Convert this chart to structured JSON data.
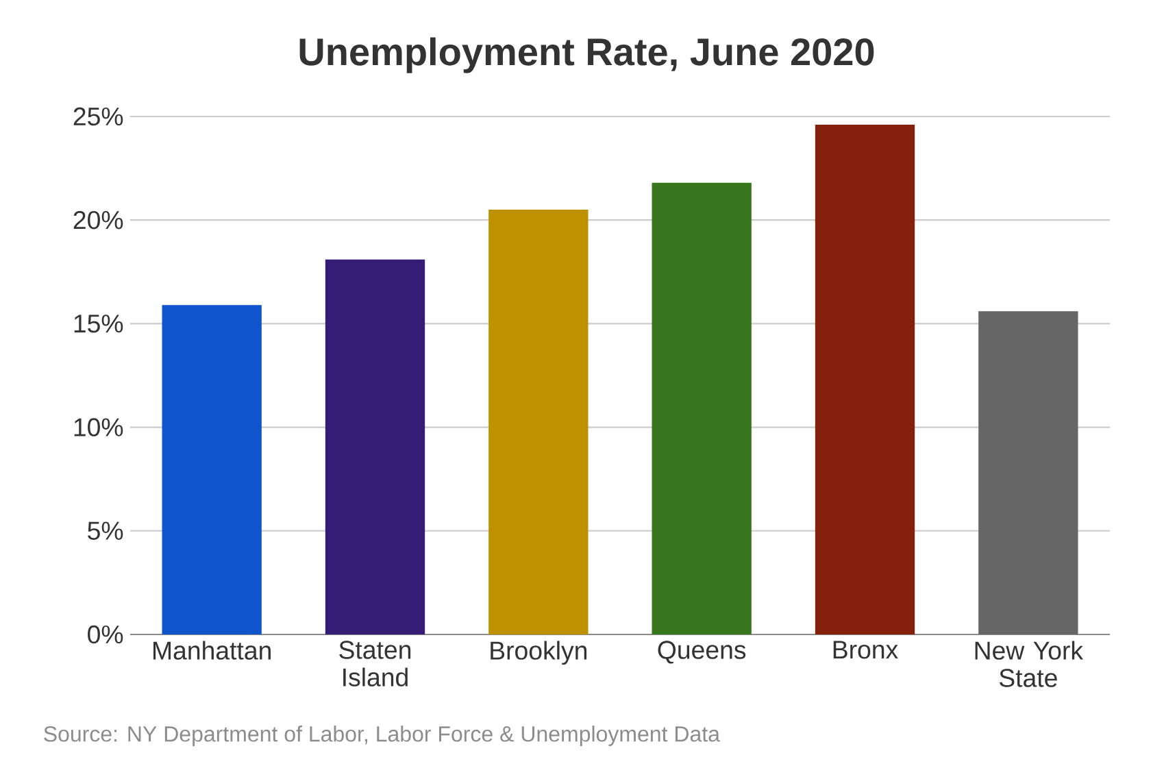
{
  "chart_data": {
    "type": "bar",
    "title": "Unemployment Rate, June 2020",
    "categories": [
      "Manhattan",
      "Staten Island",
      "Brooklyn",
      "Queens",
      "Bronx",
      "New York State"
    ],
    "values": [
      15.9,
      18.1,
      20.5,
      21.8,
      24.6,
      15.6
    ],
    "colors": [
      "#1155cc",
      "#351c75",
      "#bf9000",
      "#38761d",
      "#85200c",
      "#666666"
    ],
    "ylim": [
      0,
      25
    ],
    "yticks": [
      {
        "value": 0,
        "label": "0%"
      },
      {
        "value": 5,
        "label": "5%"
      },
      {
        "value": 10,
        "label": "10%"
      },
      {
        "value": 15,
        "label": "15%"
      },
      {
        "value": 20,
        "label": "20%"
      },
      {
        "value": 25,
        "label": "25%"
      }
    ],
    "grid": "y",
    "annotations": [
      "Source: NY Department of Labor, Labor Force & Unemployment Data"
    ]
  }
}
